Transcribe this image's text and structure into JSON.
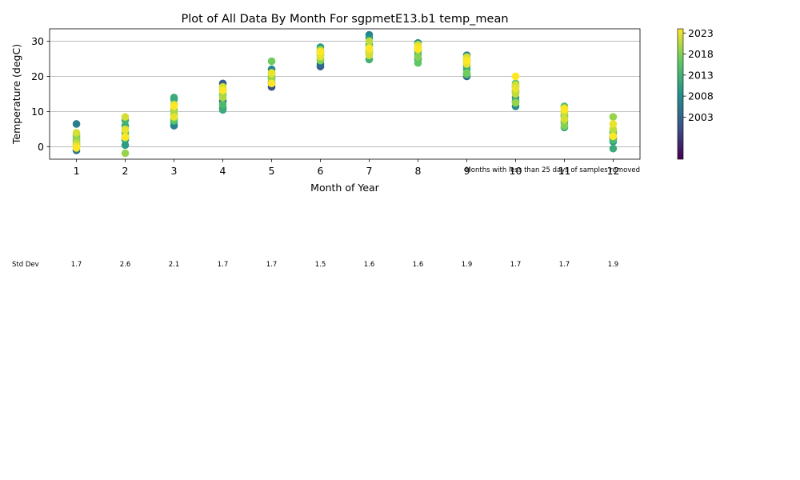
{
  "chart_data": {
    "type": "scatter",
    "title": "Plot of All Data By Month For sgpmetE13.b1 temp_mean",
    "xlabel": "Month of Year",
    "ylabel": "Temperature (degC)",
    "x_ticks": [
      "1",
      "2",
      "3",
      "4",
      "5",
      "6",
      "7",
      "8",
      "9",
      "10",
      "11",
      "12"
    ],
    "xlim": [
      0.45,
      12.55
    ],
    "y_ticks": [
      "0",
      "10",
      "20",
      "30"
    ],
    "ylim": [
      -3.5,
      33.5
    ],
    "grid": "horizontal",
    "note": "Months with less than 25 days of samples removed",
    "colorbar": {
      "ticks": [
        "2003",
        "2008",
        "2013",
        "2018",
        "2023"
      ],
      "tick_values": [
        2003,
        2008,
        2013,
        2018,
        2023
      ],
      "range": [
        1993,
        2024
      ],
      "colormap": "viridis"
    },
    "series": [
      {
        "month": 1,
        "points": [
          [
            2006,
            6.5
          ],
          [
            2005,
            -1.0
          ],
          [
            2010,
            1.5
          ],
          [
            2012,
            0.5
          ],
          [
            2014,
            2.2
          ],
          [
            2016,
            3.0
          ],
          [
            2018,
            3.5
          ],
          [
            2019,
            2.0
          ],
          [
            2021,
            1.0
          ],
          [
            2022,
            4.0
          ],
          [
            2023,
            0.2
          ],
          [
            2024,
            -0.3
          ]
        ]
      },
      {
        "month": 2,
        "points": [
          [
            2008,
            2.0
          ],
          [
            2010,
            0.5
          ],
          [
            2012,
            6.0
          ],
          [
            2013,
            7.5
          ],
          [
            2014,
            4.0
          ],
          [
            2016,
            3.0
          ],
          [
            2017,
            2.5
          ],
          [
            2019,
            -1.8
          ],
          [
            2020,
            5.0
          ],
          [
            2022,
            8.5
          ],
          [
            2023,
            4.8
          ],
          [
            2024,
            2.8
          ]
        ]
      },
      {
        "month": 3,
        "points": [
          [
            2006,
            6.0
          ],
          [
            2009,
            7.0
          ],
          [
            2011,
            13.5
          ],
          [
            2012,
            14.0
          ],
          [
            2013,
            8.0
          ],
          [
            2015,
            9.0
          ],
          [
            2016,
            7.5
          ],
          [
            2018,
            10.5
          ],
          [
            2020,
            9.5
          ],
          [
            2022,
            12.0
          ],
          [
            2023,
            8.5
          ],
          [
            2024,
            11.5
          ]
        ]
      },
      {
        "month": 4,
        "points": [
          [
            2002,
            18.0
          ],
          [
            2004,
            13.0
          ],
          [
            2006,
            16.0
          ],
          [
            2009,
            11.0
          ],
          [
            2011,
            14.5
          ],
          [
            2012,
            10.5
          ],
          [
            2014,
            12.0
          ],
          [
            2016,
            16.5
          ],
          [
            2018,
            15.0
          ],
          [
            2020,
            14.0
          ],
          [
            2022,
            17.0
          ],
          [
            2024,
            16.0
          ]
        ]
      },
      {
        "month": 5,
        "points": [
          [
            2001,
            17.0
          ],
          [
            2004,
            18.0
          ],
          [
            2007,
            22.0
          ],
          [
            2009,
            19.5
          ],
          [
            2011,
            21.0
          ],
          [
            2013,
            18.5
          ],
          [
            2015,
            20.0
          ],
          [
            2017,
            24.3
          ],
          [
            2019,
            19.0
          ],
          [
            2021,
            20.5
          ],
          [
            2023,
            21.0
          ],
          [
            2024,
            18.0
          ]
        ]
      },
      {
        "month": 6,
        "points": [
          [
            2002,
            22.8
          ],
          [
            2004,
            23.5
          ],
          [
            2007,
            26.0
          ],
          [
            2010,
            28.3
          ],
          [
            2012,
            27.0
          ],
          [
            2014,
            25.0
          ],
          [
            2016,
            26.5
          ],
          [
            2018,
            24.5
          ],
          [
            2020,
            27.5
          ],
          [
            2022,
            25.5
          ],
          [
            2023,
            26.0
          ],
          [
            2024,
            27.0
          ]
        ]
      },
      {
        "month": 7,
        "points": [
          [
            2004,
            27.5
          ],
          [
            2007,
            31.8
          ],
          [
            2009,
            30.8
          ],
          [
            2011,
            29.0
          ],
          [
            2013,
            24.8
          ],
          [
            2015,
            26.5
          ],
          [
            2017,
            28.5
          ],
          [
            2019,
            27.0
          ],
          [
            2021,
            30.0
          ],
          [
            2022,
            26.0
          ],
          [
            2023,
            27.5
          ],
          [
            2024,
            28.0
          ]
        ]
      },
      {
        "month": 8,
        "points": [
          [
            2005,
            25.0
          ],
          [
            2008,
            29.5
          ],
          [
            2011,
            27.0
          ],
          [
            2013,
            26.0
          ],
          [
            2015,
            28.0
          ],
          [
            2016,
            23.8
          ],
          [
            2018,
            25.5
          ],
          [
            2020,
            27.5
          ],
          [
            2021,
            29.0
          ],
          [
            2023,
            28.5
          ],
          [
            2024,
            27.8
          ]
        ]
      },
      {
        "month": 9,
        "points": [
          [
            2003,
            20.0
          ],
          [
            2006,
            26.0
          ],
          [
            2008,
            23.0
          ],
          [
            2010,
            24.5
          ],
          [
            2012,
            22.0
          ],
          [
            2014,
            20.5
          ],
          [
            2017,
            21.0
          ],
          [
            2019,
            24.0
          ],
          [
            2020,
            25.0
          ],
          [
            2022,
            25.5
          ],
          [
            2023,
            23.5
          ],
          [
            2024,
            24.5
          ]
        ]
      },
      {
        "month": 10,
        "points": [
          [
            2008,
            11.5
          ],
          [
            2010,
            14.0
          ],
          [
            2012,
            13.0
          ],
          [
            2013,
            15.5
          ],
          [
            2015,
            17.0
          ],
          [
            2016,
            18.0
          ],
          [
            2018,
            16.0
          ],
          [
            2019,
            12.5
          ],
          [
            2021,
            15.0
          ],
          [
            2022,
            17.5
          ],
          [
            2023,
            16.5
          ],
          [
            2024,
            20.0
          ]
        ]
      },
      {
        "month": 11,
        "points": [
          [
            2008,
            7.0
          ],
          [
            2010,
            9.0
          ],
          [
            2012,
            5.5
          ],
          [
            2014,
            11.5
          ],
          [
            2016,
            8.5
          ],
          [
            2018,
            6.0
          ],
          [
            2019,
            10.0
          ],
          [
            2020,
            7.5
          ],
          [
            2021,
            9.5
          ],
          [
            2022,
            8.0
          ],
          [
            2023,
            11.0
          ],
          [
            2024,
            10.5
          ]
        ]
      },
      {
        "month": 12,
        "points": [
          [
            2003,
            2.5
          ],
          [
            2006,
            4.0
          ],
          [
            2008,
            3.0
          ],
          [
            2010,
            1.5
          ],
          [
            2012,
            -0.5
          ],
          [
            2014,
            2.0
          ],
          [
            2016,
            4.5
          ],
          [
            2018,
            3.5
          ],
          [
            2019,
            8.5
          ],
          [
            2021,
            5.0
          ],
          [
            2023,
            6.5
          ],
          [
            2024,
            3.0
          ]
        ]
      }
    ],
    "std_dev": {
      "label": "Std Dev",
      "values": [
        "1.7",
        "2.6",
        "2.1",
        "1.7",
        "1.7",
        "1.5",
        "1.6",
        "1.6",
        "1.9",
        "1.7",
        "1.7",
        "1.9"
      ]
    }
  }
}
